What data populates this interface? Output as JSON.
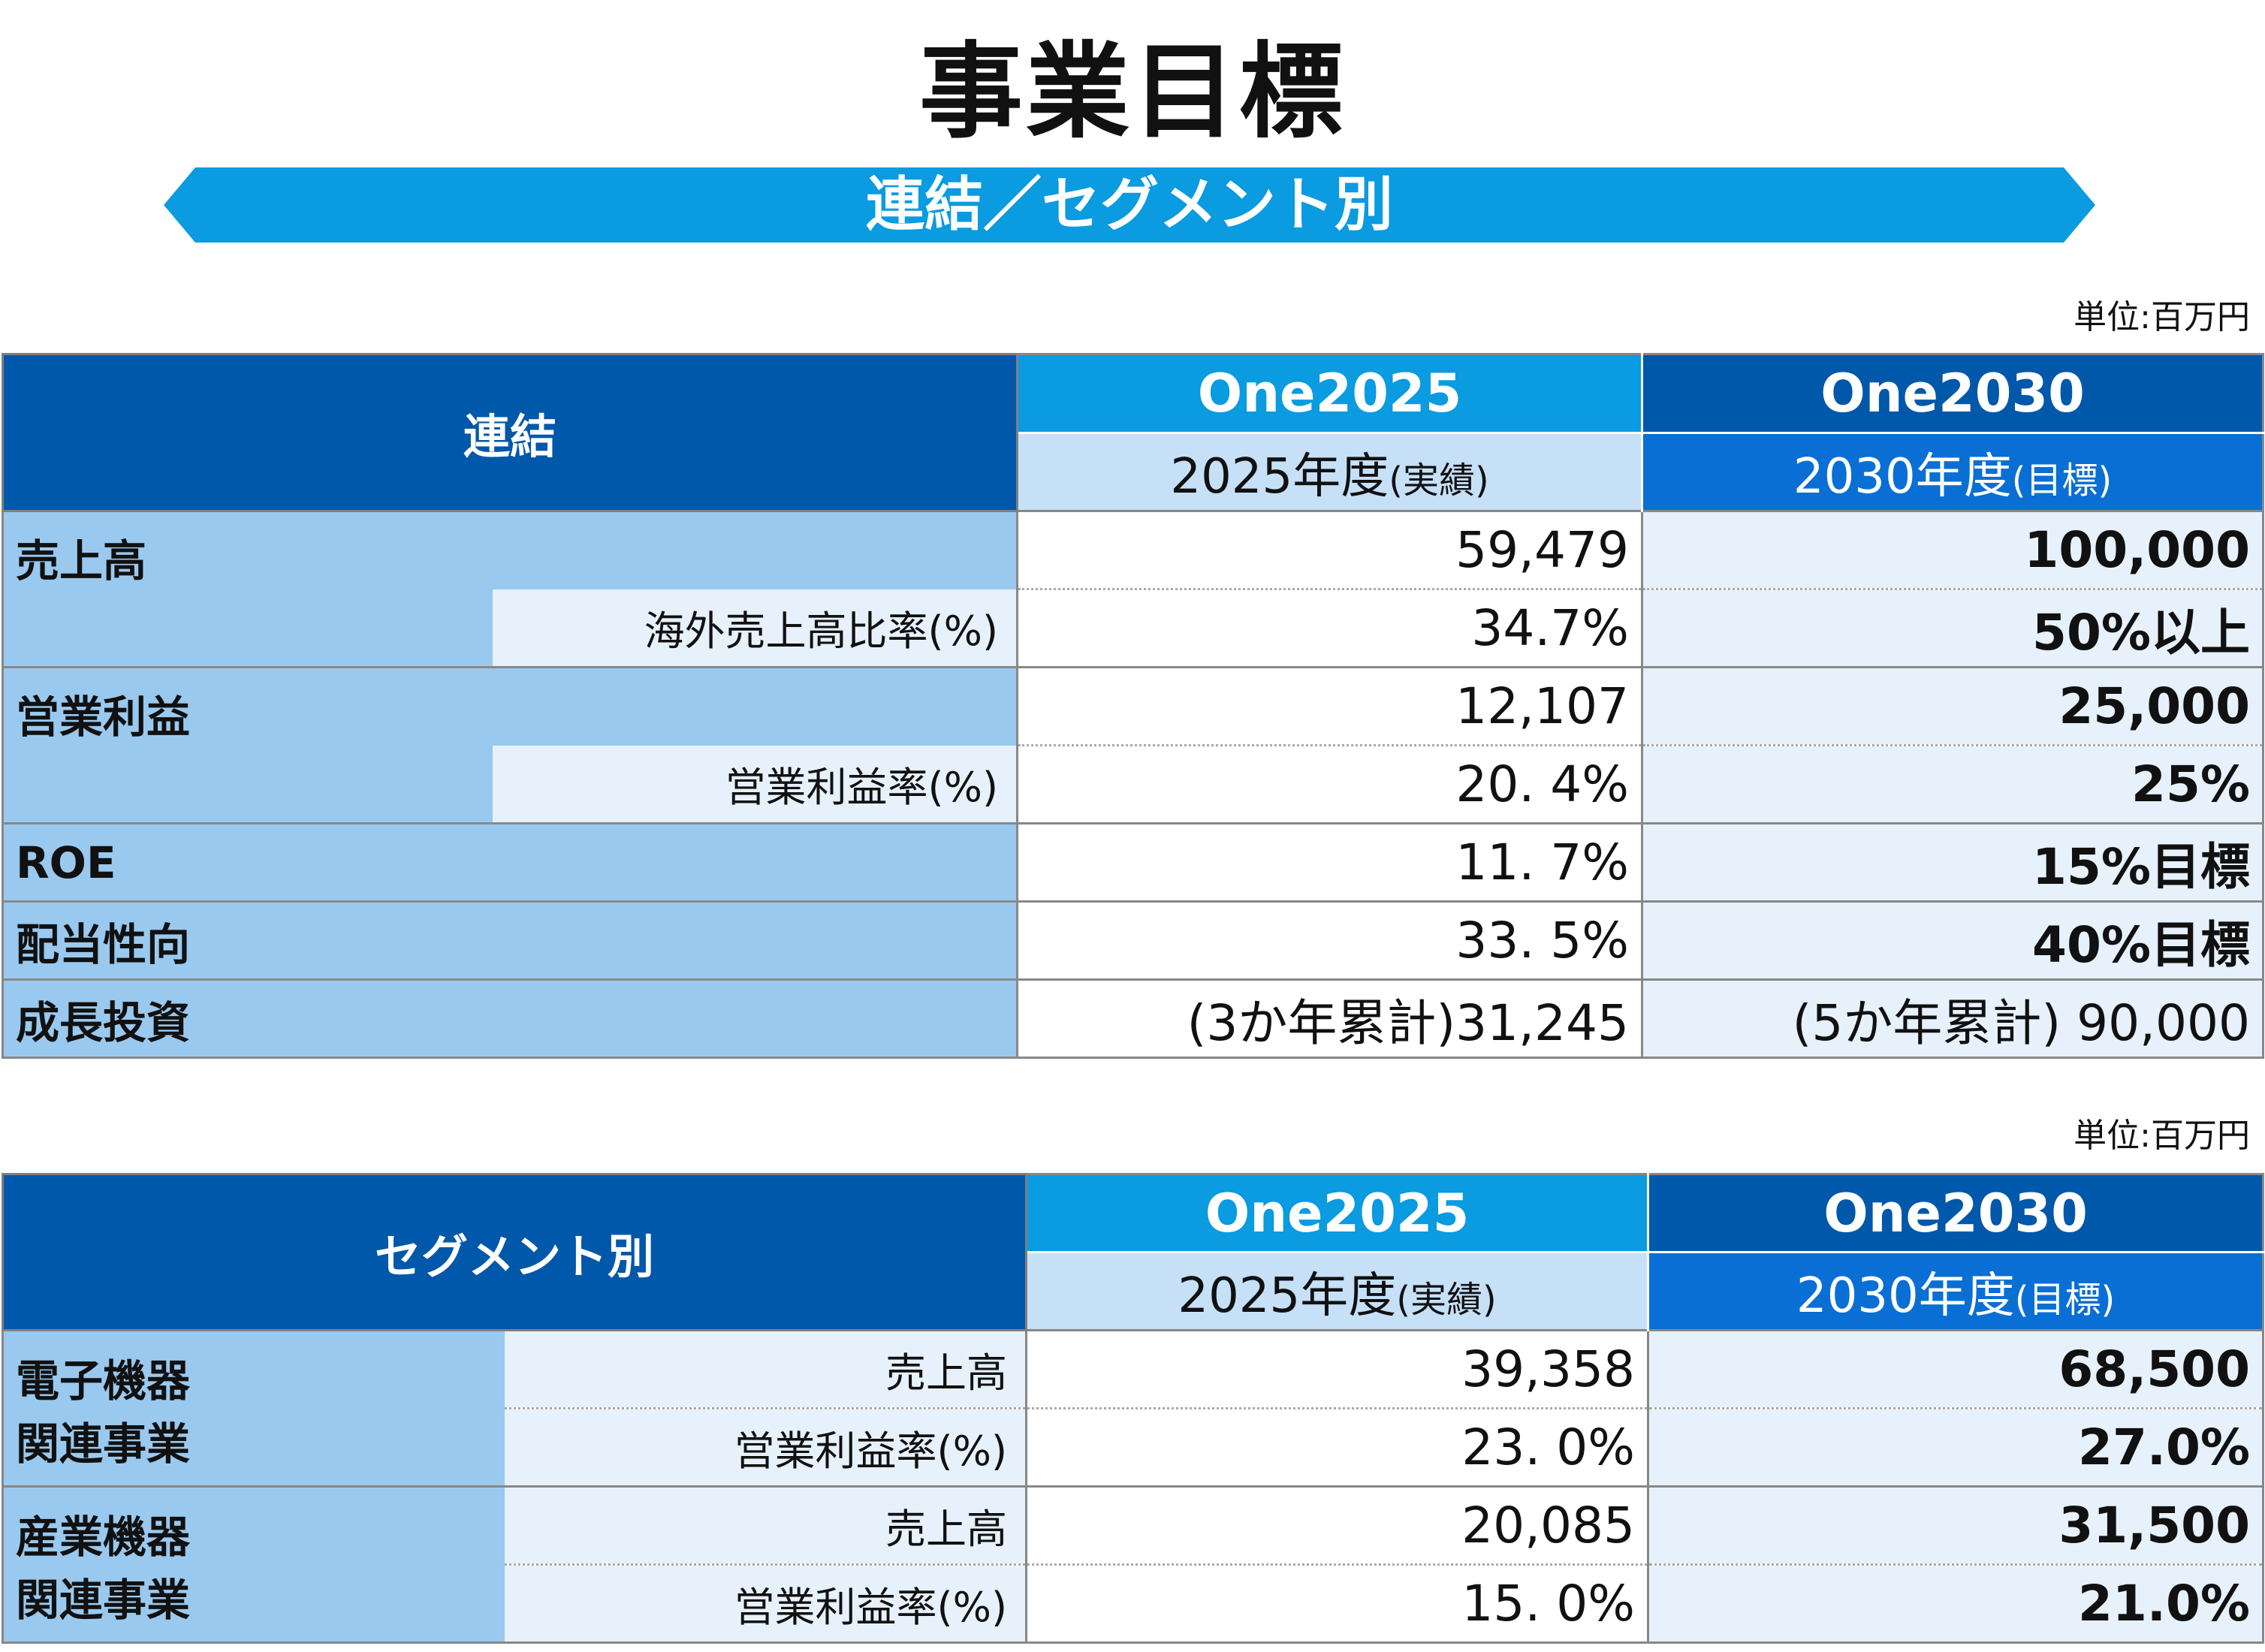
{
  "title": "事業目標",
  "banner": "連結／セグメント別",
  "unit_label": "単位:百万円",
  "consolidated": {
    "header": "連結",
    "col_a_title": "One2025",
    "col_a_year": "2025年度",
    "col_a_note": "(実績)",
    "col_b_title": "One2030",
    "col_b_year": "2030年度",
    "col_b_note": "(目標)",
    "rows": [
      {
        "label": "売上高",
        "sub": "",
        "v2025": "59,479",
        "v2030": "100,000"
      },
      {
        "label": "",
        "sub": "海外売上高比率(%)",
        "v2025": "34.7%",
        "v2030": "50%以上"
      },
      {
        "label": "営業利益",
        "sub": "",
        "v2025": "12,107",
        "v2030": "25,000"
      },
      {
        "label": "",
        "sub": "営業利益率(%)",
        "v2025": "20. 4%",
        "v2030": "25%"
      },
      {
        "label": "ROE",
        "sub": "",
        "v2025": "11. 7%",
        "v2030": "15%目標"
      },
      {
        "label": "配当性向",
        "sub": "",
        "v2025": "33. 5%",
        "v2030": "40%目標"
      },
      {
        "label": "成長投資",
        "sub": "",
        "v2025": "(3か年累計)31,245",
        "v2030": "(5か年累計) 90,000"
      }
    ]
  },
  "segment": {
    "header": "セグメント別",
    "col_a_title": "One2025",
    "col_a_year": "2025年度",
    "col_a_note": "(実績)",
    "col_b_title": "One2030",
    "col_b_year": "2030年度",
    "col_b_note": "(目標)",
    "groups": [
      {
        "label_line1": "電子機器",
        "label_line2": "関連事業",
        "rows": [
          {
            "sub": "売上高",
            "v2025": "39,358",
            "v2030": "68,500"
          },
          {
            "sub": "営業利益率(%)",
            "v2025": "23. 0%",
            "v2030": "27.0%"
          }
        ]
      },
      {
        "label_line1": "産業機器",
        "label_line2": "関連事業",
        "rows": [
          {
            "sub": "売上高",
            "v2025": "20,085",
            "v2030": "31,500"
          },
          {
            "sub": "営業利益率(%)",
            "v2025": "15. 0%",
            "v2030": "21.0%"
          }
        ]
      }
    ]
  }
}
